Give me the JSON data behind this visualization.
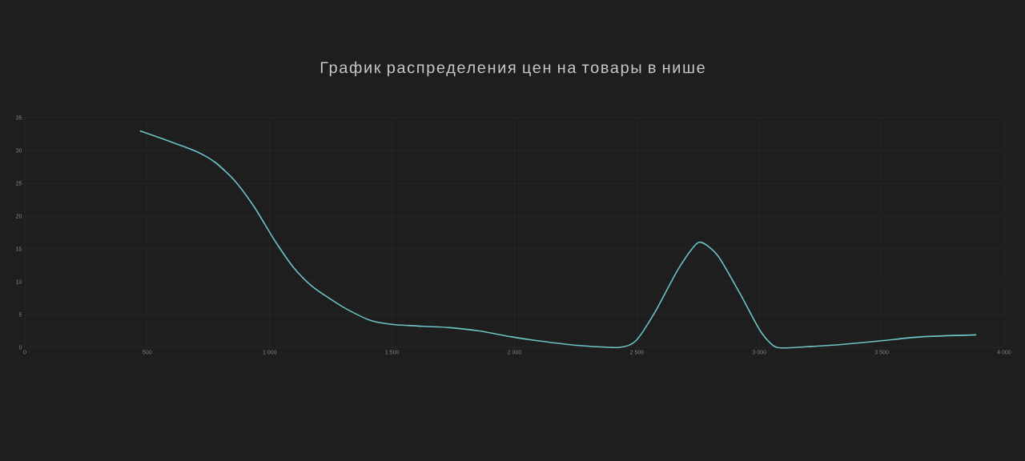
{
  "chart_data": {
    "type": "line",
    "title": "График распределения цен на товары в нише",
    "x": [
      470,
      591,
      697,
      777,
      857,
      937,
      1017,
      1097,
      1177,
      1297,
      1404,
      1497,
      1631,
      1737,
      1857,
      1988,
      2095,
      2255,
      2429,
      2496,
      2576,
      2670,
      2753,
      2830,
      2924,
      3004,
      3071,
      3191,
      3325,
      3499,
      3659,
      3886
    ],
    "series": [
      {
        "color": "#6cc3c6",
        "values": [
          33.0,
          31.4,
          29.9,
          28.2,
          25.4,
          21.4,
          16.5,
          12.2,
          9.2,
          6.2,
          4.2,
          3.5,
          3.2,
          3.0,
          2.5,
          1.6,
          1.0,
          0.3,
          0,
          1.0,
          5.5,
          12.0,
          16.0,
          14.0,
          8.0,
          2.5,
          0,
          0.1,
          0.4,
          1.0,
          1.6,
          1.9
        ]
      }
    ],
    "xlim": [
      0,
      4000
    ],
    "ylim": [
      0,
      35
    ],
    "xticks": [
      0,
      500,
      {
        "value": 1000,
        "label": "1 000"
      },
      {
        "value": 1500,
        "label": "1 500"
      },
      {
        "value": 2000,
        "label": "2 000"
      },
      {
        "value": 2500,
        "label": "2 500"
      },
      {
        "value": 3000,
        "label": "3 000"
      },
      {
        "value": 3500,
        "label": "3 500"
      },
      {
        "value": 4000,
        "label": "4 000"
      }
    ],
    "yticks": [
      0,
      5,
      10,
      15,
      20,
      25,
      30,
      35
    ],
    "grid": true,
    "marker": "none",
    "line_style": "solid"
  }
}
